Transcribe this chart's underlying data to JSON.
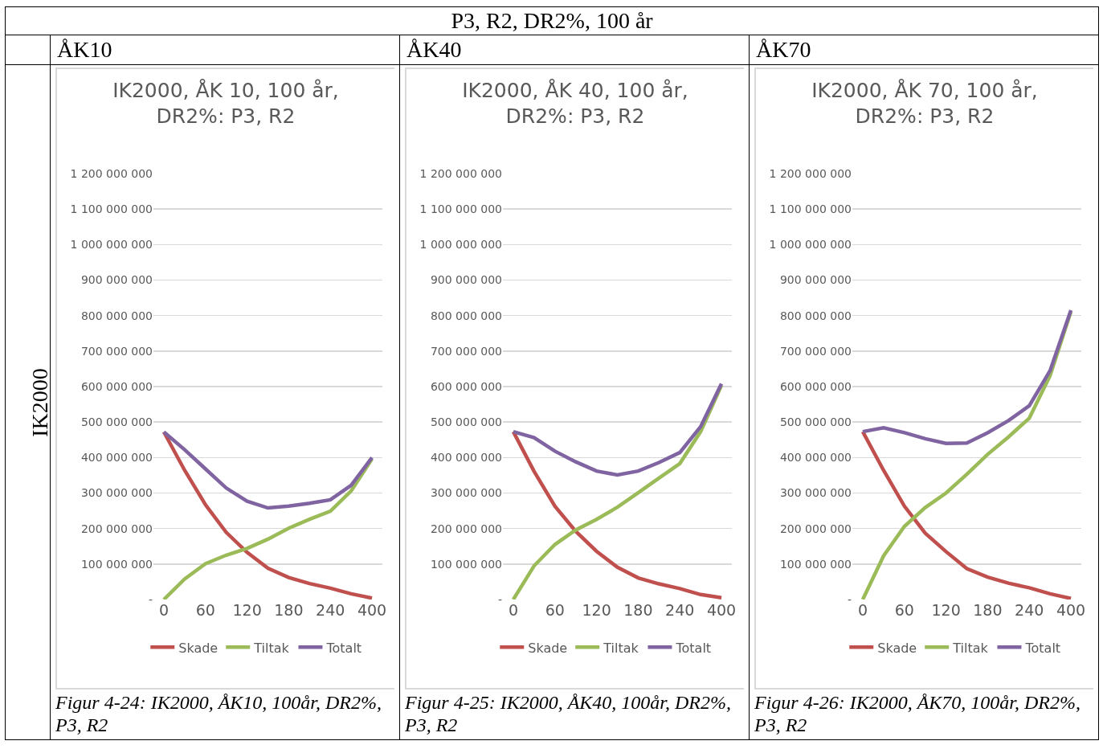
{
  "chart_data": [
    {
      "type": "line",
      "title": "IK2000, ÅK 10, 100 år,\nDR2%: P3, R2",
      "categories": [
        "0",
        null,
        "60",
        null,
        "120",
        null,
        "180",
        null,
        "240",
        null,
        "400"
      ],
      "series": [
        {
          "name": "Skade",
          "color": "#c0504d",
          "values": [
            472000000,
            364000000,
            267000000,
            189000000,
            133000000,
            88000000,
            62000000,
            45000000,
            32000000,
            16000000,
            4000000
          ]
        },
        {
          "name": "Tiltak",
          "color": "#9bbb59",
          "values": [
            0,
            58000000,
            101000000,
            125000000,
            144000000,
            170000000,
            201000000,
            226000000,
            249000000,
            306000000,
            396000000
          ]
        },
        {
          "name": "Totalt",
          "color": "#8064a2",
          "values": [
            472000000,
            422000000,
            368000000,
            314000000,
            277000000,
            258000000,
            263000000,
            271000000,
            281000000,
            322000000,
            400000000
          ]
        }
      ],
      "ylim": [
        0,
        1200000000
      ],
      "yticks": [
        {
          "value": 0,
          "label": "-"
        },
        {
          "value": 100000000,
          "label": "100 000 000"
        },
        {
          "value": 200000000,
          "label": "200 000 000"
        },
        {
          "value": 300000000,
          "label": "300 000 000"
        },
        {
          "value": 400000000,
          "label": "400 000 000"
        },
        {
          "value": 500000000,
          "label": "500 000 000"
        },
        {
          "value": 600000000,
          "label": "600 000 000"
        },
        {
          "value": 700000000,
          "label": "700 000 000"
        },
        {
          "value": 800000000,
          "label": "800 000 000"
        },
        {
          "value": 900000000,
          "label": "900 000 000"
        },
        {
          "value": 1000000000,
          "label": "1 000 000 000"
        },
        {
          "value": 1100000000,
          "label": "1 100 000 000"
        },
        {
          "value": 1200000000,
          "label": "1 200 000 000"
        }
      ],
      "grid": "y",
      "legend": "bottom",
      "line_style": "solid",
      "annotations": [
        "ÅK10",
        "Figur 4-24: IK2000, ÅK10, 100år, DR2%, P3, R2",
        "P3, R2, DR2%, 100 år",
        "IK2000"
      ]
    },
    {
      "type": "line",
      "title": "IK2000, ÅK 40, 100 år,\nDR2%: P3, R2",
      "categories": [
        "0",
        null,
        "60",
        null,
        "120",
        null,
        "180",
        null,
        "240",
        null,
        "400"
      ],
      "series": [
        {
          "name": "Skade",
          "color": "#c0504d",
          "values": [
            473000000,
            361000000,
            263000000,
            192000000,
            136000000,
            91000000,
            61000000,
            44000000,
            31000000,
            14000000,
            5000000
          ]
        },
        {
          "name": "Tiltak",
          "color": "#9bbb59",
          "values": [
            0,
            95000000,
            155000000,
            196000000,
            226000000,
            260000000,
            301000000,
            342000000,
            383000000,
            473000000,
            603000000
          ]
        },
        {
          "name": "Totalt",
          "color": "#8064a2",
          "values": [
            473000000,
            456000000,
            418000000,
            388000000,
            362000000,
            351000000,
            362000000,
            386000000,
            414000000,
            487000000,
            608000000
          ]
        }
      ],
      "ylim": [
        0,
        1200000000
      ],
      "yticks": [
        {
          "value": 0,
          "label": "-"
        },
        {
          "value": 100000000,
          "label": "100 000 000"
        },
        {
          "value": 200000000,
          "label": "200 000 000"
        },
        {
          "value": 300000000,
          "label": "300 000 000"
        },
        {
          "value": 400000000,
          "label": "400 000 000"
        },
        {
          "value": 500000000,
          "label": "500 000 000"
        },
        {
          "value": 600000000,
          "label": "600 000 000"
        },
        {
          "value": 700000000,
          "label": "700 000 000"
        },
        {
          "value": 800000000,
          "label": "800 000 000"
        },
        {
          "value": 900000000,
          "label": "900 000 000"
        },
        {
          "value": 1000000000,
          "label": "1 000 000 000"
        },
        {
          "value": 1100000000,
          "label": "1 100 000 000"
        },
        {
          "value": 1200000000,
          "label": "1 200 000 000"
        }
      ],
      "grid": "y",
      "legend": "bottom",
      "line_style": "solid",
      "annotations": [
        "ÅK40",
        "Figur 4-25: IK2000, ÅK40, 100år, DR2%, P3, R2"
      ]
    },
    {
      "type": "line",
      "title": "IK2000, ÅK 70, 100 år,\nDR2%: P3, R2",
      "categories": [
        "0",
        null,
        "60",
        null,
        "120",
        null,
        "180",
        null,
        "240",
        null,
        "400"
      ],
      "series": [
        {
          "name": "Skade",
          "color": "#c0504d",
          "values": [
            473000000,
            364000000,
            263000000,
            187000000,
            135000000,
            87000000,
            63000000,
            46000000,
            33000000,
            16000000,
            3000000
          ]
        },
        {
          "name": "Tiltak",
          "color": "#9bbb59",
          "values": [
            0,
            123000000,
            206000000,
            259000000,
            300000000,
            353000000,
            409000000,
            458000000,
            511000000,
            631000000,
            811000000
          ]
        },
        {
          "name": "Totalt",
          "color": "#8064a2",
          "values": [
            473000000,
            484000000,
            470000000,
            453000000,
            440000000,
            441000000,
            470000000,
            504000000,
            546000000,
            645000000,
            815000000
          ]
        }
      ],
      "ylim": [
        0,
        1200000000
      ],
      "yticks": [
        {
          "value": 0,
          "label": "-"
        },
        {
          "value": 100000000,
          "label": "100 000 000"
        },
        {
          "value": 200000000,
          "label": "200 000 000"
        },
        {
          "value": 300000000,
          "label": "300 000 000"
        },
        {
          "value": 400000000,
          "label": "400 000 000"
        },
        {
          "value": 500000000,
          "label": "500 000 000"
        },
        {
          "value": 600000000,
          "label": "600 000 000"
        },
        {
          "value": 700000000,
          "label": "700 000 000"
        },
        {
          "value": 800000000,
          "label": "800 000 000"
        },
        {
          "value": 900000000,
          "label": "900 000 000"
        },
        {
          "value": 1000000000,
          "label": "1 000 000 000"
        },
        {
          "value": 1100000000,
          "label": "1 100 000 000"
        },
        {
          "value": 1200000000,
          "label": "1 200 000 000"
        }
      ],
      "grid": "y",
      "legend": "bottom",
      "line_style": "solid",
      "annotations": [
        "ÅK70",
        "Figur 4-26: IK2000, ÅK70, 100år, DR2%, P3, R2"
      ]
    }
  ]
}
